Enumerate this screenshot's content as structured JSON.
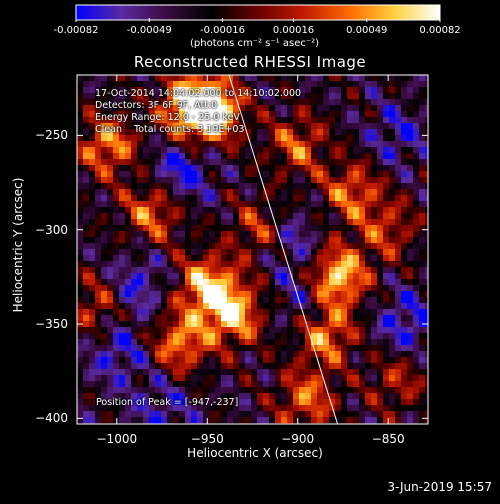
{
  "colorbar": {
    "tick_labels": [
      "-0.00082",
      "-0.00049",
      "-0.00016",
      "0.00016",
      "0.00049",
      "0.00082"
    ],
    "tick_values": [
      -0.00082,
      -0.00049,
      -0.00016,
      0.00016,
      0.00049,
      0.00082
    ],
    "units_label": "(photons cm⁻² s⁻¹ asec⁻²)",
    "range": [
      -0.00082,
      0.00082
    ]
  },
  "info": {
    "line1": "17-Oct-2014 14:04:02.000 to 14:10:02.000",
    "line2": "Detectors: 3F 6F 9F, Att:0",
    "line3": "Energy Range: 12.0 - 25.0 keV",
    "line4": "Clean    Total counts: 3.19E+03"
  },
  "peak_label": "Position of Peak = [-947,-237]",
  "footer_date": "3-Jun-2019 15:57",
  "colors": {
    "background": "#000000",
    "text": "#ffffff",
    "limb_line": "#ffffff"
  },
  "chart_data": {
    "type": "heatmap",
    "title": "Reconstructed RHESSI Image",
    "xlabel": "Heliocentric X (arcsec)",
    "ylabel": "Heliocentric Y (arcsec)",
    "xlim": [
      -1022,
      -828
    ],
    "ylim": [
      -403,
      -218
    ],
    "x_ticks": [
      -1000,
      -950,
      -900,
      -850
    ],
    "x_tick_labels": [
      "−1000",
      "−950",
      "−900",
      "−850"
    ],
    "y_ticks": [
      -250,
      -300,
      -350,
      -400
    ],
    "y_tick_labels": [
      "−250",
      "−300",
      "−350",
      "−400"
    ],
    "colormap": [
      "#0000ff",
      "#5a2aa0",
      "#3a0a40",
      "#000000",
      "#6a0000",
      "#c01a00",
      "#ff6a00",
      "#ffd040",
      "#ffffff"
    ],
    "peak_position": [
      -947,
      -237
    ],
    "limb_line": [
      [
        -938,
        -218
      ],
      [
        -878,
        -403
      ]
    ],
    "bright_regions": [
      {
        "x": -1005,
        "y": -255,
        "level": 0.7
      },
      {
        "x": -960,
        "y": -235,
        "level": 0.9
      },
      {
        "x": -947,
        "y": -237,
        "level": 1.0
      },
      {
        "x": -980,
        "y": -290,
        "level": 0.65
      },
      {
        "x": -950,
        "y": -330,
        "level": 0.85
      },
      {
        "x": -935,
        "y": -345,
        "level": 0.8
      },
      {
        "x": -965,
        "y": -360,
        "level": 0.7
      },
      {
        "x": -920,
        "y": -300,
        "level": 0.55
      },
      {
        "x": -878,
        "y": -325,
        "level": 0.95
      },
      {
        "x": -885,
        "y": -355,
        "level": 0.75
      },
      {
        "x": -870,
        "y": -280,
        "level": 0.6
      },
      {
        "x": -895,
        "y": -390,
        "level": 0.6
      },
      {
        "x": -1010,
        "y": -340,
        "level": 0.5
      },
      {
        "x": -900,
        "y": -255,
        "level": 0.55
      },
      {
        "x": -850,
        "y": -300,
        "level": 0.45
      },
      {
        "x": -845,
        "y": -380,
        "level": 0.4
      }
    ],
    "dark_regions": [
      {
        "x": -965,
        "y": -270,
        "level": -0.7
      },
      {
        "x": -990,
        "y": -330,
        "level": -0.6
      },
      {
        "x": -1000,
        "y": -365,
        "level": -0.55
      },
      {
        "x": -905,
        "y": -305,
        "level": -0.6
      },
      {
        "x": -895,
        "y": -340,
        "level": -0.5
      },
      {
        "x": -845,
        "y": -250,
        "level": -0.45
      },
      {
        "x": -840,
        "y": -350,
        "level": -0.6
      },
      {
        "x": -975,
        "y": -395,
        "level": -0.45
      }
    ]
  }
}
